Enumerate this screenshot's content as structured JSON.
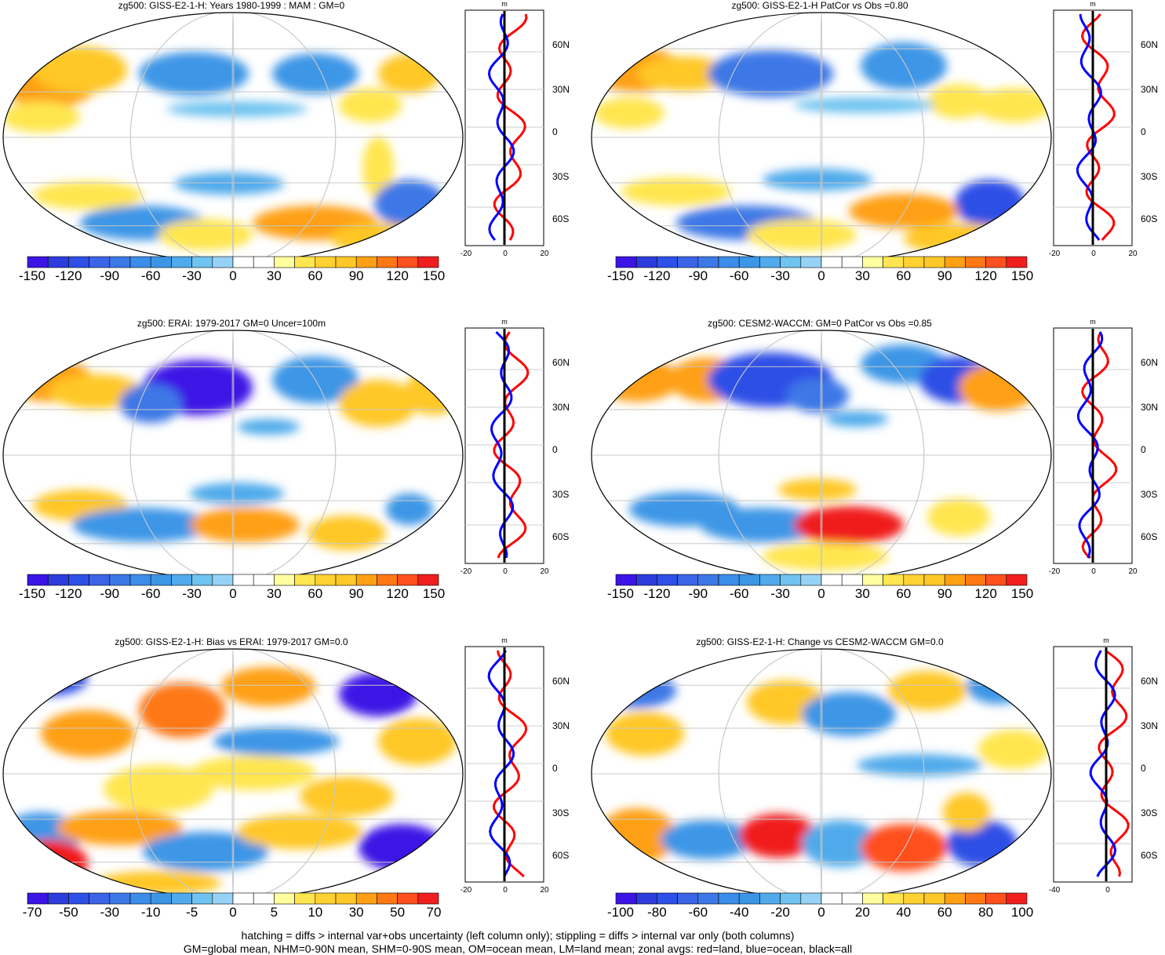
{
  "panels": [
    {
      "title": "zg500: GISS-E2-1-H: Years 1980-1999 : MAM : GM=0",
      "colorbar": [
        "-150",
        "-120",
        "-90",
        "-60",
        "-30",
        "0",
        "30",
        "60",
        "90",
        "120",
        "150"
      ],
      "zonal_ticks": [
        "-20",
        "0",
        "20"
      ],
      "lat_labels": [
        "60N",
        "30N",
        "0",
        "30S",
        "60S"
      ],
      "unit": "m"
    },
    {
      "title": "zg500: GISS-E2-1-H PatCor vs Obs =0.80",
      "colorbar": [
        "-150",
        "-120",
        "-90",
        "-60",
        "-30",
        "0",
        "30",
        "60",
        "90",
        "120",
        "150"
      ],
      "zonal_ticks": [
        "-20",
        "0",
        "20"
      ],
      "lat_labels": [
        "60N",
        "30N",
        "0",
        "30S",
        "60S"
      ],
      "unit": "m"
    },
    {
      "title": "zg500: ERAI: 1979-2017 GM=0 Uncer=100m",
      "colorbar": [
        "-150",
        "-120",
        "-90",
        "-60",
        "-30",
        "0",
        "30",
        "60",
        "90",
        "120",
        "150"
      ],
      "zonal_ticks": [
        "-20",
        "0",
        "20"
      ],
      "lat_labels": [
        "60N",
        "30N",
        "0",
        "30S",
        "60S"
      ],
      "unit": "m"
    },
    {
      "title": "zg500: CESM2-WACCM: GM=0 PatCor vs Obs =0.85",
      "colorbar": [
        "-150",
        "-120",
        "-90",
        "-60",
        "-30",
        "0",
        "30",
        "60",
        "90",
        "120",
        "150"
      ],
      "zonal_ticks": [
        "-20",
        "0",
        "20"
      ],
      "lat_labels": [
        "60N",
        "30N",
        "0",
        "30S",
        "60S"
      ],
      "unit": "m"
    },
    {
      "title": "zg500: GISS-E2-1-H: Bias vs ERAI: 1979-2017 GM=0.0",
      "colorbar": [
        "-70",
        "-50",
        "-30",
        "-10",
        "-5",
        "0",
        "5",
        "10",
        "30",
        "50",
        "70"
      ],
      "zonal_ticks": [
        "-20",
        "0",
        "20"
      ],
      "lat_labels": [
        "60N",
        "30N",
        "0",
        "30S",
        "60S"
      ],
      "unit": "m"
    },
    {
      "title": "zg500: GISS-E2-1-H: Change vs CESM2-WACCM GM=0.0",
      "colorbar": [
        "-100",
        "-80",
        "-60",
        "-40",
        "-20",
        "0",
        "20",
        "40",
        "60",
        "80",
        "100"
      ],
      "zonal_ticks": [
        "-40",
        "0"
      ],
      "lat_labels": [
        "60N",
        "30N",
        "0",
        "30S",
        "60S"
      ],
      "unit": "m"
    }
  ],
  "colors": {
    "palette": [
      "#3c14e6",
      "#2d50e6",
      "#3c78e6",
      "#3c96e6",
      "#50aaeb",
      "#6ec3f0",
      "#96d2f5",
      "#ffffff",
      "#ffffff",
      "#ffffa0",
      "#ffe650",
      "#ffc828",
      "#ffa014",
      "#ff7814",
      "#ff501e",
      "#f01e1e",
      "#c80000"
    ],
    "land_line": "red",
    "ocean_line": "blue",
    "all_line": "black"
  },
  "footer": {
    "line1": "hatching = diffs > internal var+obs uncertainty (left column only); stippling = diffs > internal var only (both columns)",
    "line2": "GM=global mean, NHM=0-90N mean, SHM=0-90S mean, OM=ocean mean, LM=land mean; zonal avgs: red=land, blue=ocean, black=all"
  }
}
